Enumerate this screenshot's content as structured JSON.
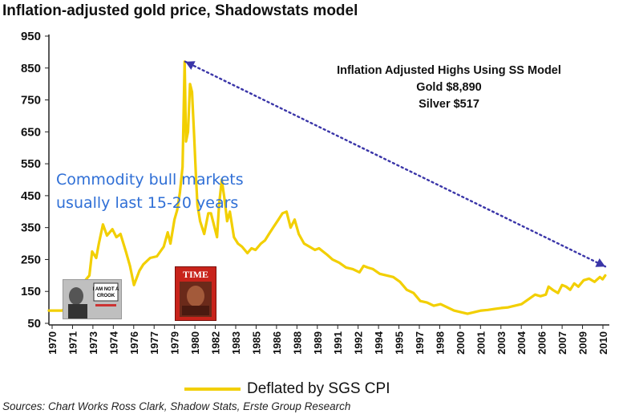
{
  "chart_data": {
    "type": "line",
    "title": "Inflation-adjusted gold price, Shadowstats model",
    "xlabel": "",
    "ylabel": "",
    "ylim": [
      50,
      950
    ],
    "y_ticks": [
      950,
      850,
      750,
      650,
      550,
      450,
      350,
      250,
      150,
      50
    ],
    "x_tick_labels": [
      "1970",
      "1971",
      "1973",
      "1974",
      "1976",
      "1977",
      "1979",
      "1980",
      "1982",
      "1983",
      "1985",
      "1986",
      "1988",
      "1989",
      "1991",
      "1992",
      "1994",
      "1995",
      "1997",
      "1998",
      "2000",
      "2001",
      "2003",
      "2004",
      "2006",
      "2007",
      "2009",
      "2010"
    ],
    "series": [
      {
        "name": "Deflated by SGS CPI",
        "color": "#f2cf00",
        "x": [
          1970.0,
          1971.0,
          1971.5,
          1972.0,
          1972.5,
          1973.0,
          1973.2,
          1973.5,
          1973.7,
          1974.0,
          1974.3,
          1974.7,
          1975.0,
          1975.3,
          1975.7,
          1976.0,
          1976.3,
          1976.7,
          1977.0,
          1977.5,
          1978.0,
          1978.5,
          1978.8,
          1979.0,
          1979.3,
          1979.5,
          1979.7,
          1979.9,
          1980.05,
          1980.15,
          1980.3,
          1980.45,
          1980.6,
          1980.75,
          1980.9,
          1981.0,
          1981.2,
          1981.5,
          1981.8,
          1982.0,
          1982.3,
          1982.45,
          1982.6,
          1982.8,
          1983.0,
          1983.2,
          1983.4,
          1983.7,
          1984.0,
          1984.3,
          1984.7,
          1985.0,
          1985.3,
          1985.7,
          1986.0,
          1986.3,
          1986.6,
          1987.0,
          1987.3,
          1987.6,
          1987.9,
          1988.2,
          1988.5,
          1988.9,
          1989.3,
          1989.7,
          1990.0,
          1990.3,
          1990.6,
          1991.0,
          1991.5,
          1992.0,
          1992.5,
          1993.0,
          1993.3,
          1993.6,
          1994.0,
          1994.5,
          1995.0,
          1995.5,
          1996.0,
          1996.5,
          1997.0,
          1997.5,
          1998.0,
          1998.5,
          1999.0,
          1999.5,
          2000.0,
          2000.5,
          2001.0,
          2001.5,
          2002.0,
          2002.5,
          2003.0,
          2003.5,
          2004.0,
          2004.5,
          2005.0,
          2005.5,
          2006.0,
          2006.4,
          2006.8,
          2007.0,
          2007.3,
          2007.7,
          2008.0,
          2008.3,
          2008.6,
          2008.9,
          2009.2,
          2009.6,
          2010.0,
          2010.4,
          2010.8,
          2011.0,
          2011.2
        ],
        "values": [
          90,
          90,
          112,
          125,
          175,
          200,
          275,
          255,
          300,
          360,
          325,
          345,
          320,
          330,
          275,
          230,
          170,
          215,
          235,
          255,
          260,
          290,
          335,
          300,
          375,
          405,
          460,
          540,
          870,
          620,
          650,
          800,
          775,
          640,
          500,
          420,
          370,
          330,
          395,
          395,
          345,
          320,
          420,
          500,
          440,
          370,
          400,
          320,
          300,
          290,
          270,
          285,
          280,
          300,
          310,
          330,
          350,
          375,
          395,
          400,
          350,
          375,
          330,
          300,
          290,
          280,
          285,
          275,
          265,
          250,
          240,
          225,
          220,
          210,
          230,
          225,
          220,
          205,
          200,
          195,
          180,
          155,
          145,
          120,
          115,
          105,
          110,
          100,
          90,
          85,
          80,
          85,
          90,
          92,
          95,
          98,
          100,
          105,
          110,
          125,
          140,
          135,
          140,
          165,
          155,
          145,
          170,
          165,
          155,
          175,
          165,
          185,
          190,
          180,
          195,
          188,
          200
        ]
      }
    ],
    "dotted_line": {
      "from": [
        1980.1,
        870
      ],
      "to": [
        2011.2,
        228
      ]
    }
  },
  "annotations": {
    "highs_line1": "Inflation Adjusted Highs Using SS Model",
    "highs_line2": "Gold $8,890",
    "highs_line3": "Silver $517",
    "bull_line1": "Commodity bull markets",
    "bull_line2": "usually last 15-20 years"
  },
  "legend": {
    "label": "Deflated by SGS CPI",
    "color": "#f2cf00"
  },
  "source": "Sources: Chart Works Ross Clark, Shadow Stats, Erste Group Research",
  "images": {
    "nixon": "nixon-photo",
    "time": "time-magazine-cover"
  }
}
